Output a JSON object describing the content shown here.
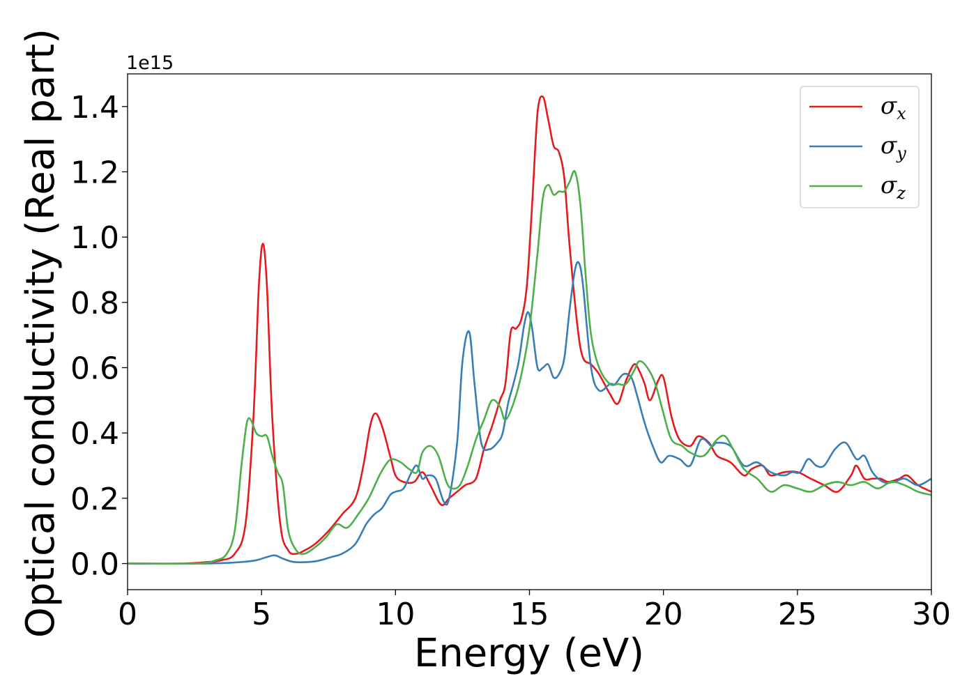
{
  "chart_data": {
    "type": "line",
    "title": "",
    "xlabel": "Energy (eV)",
    "ylabel": "Optical conductivity (Real part)",
    "y_offset_label": "1e15",
    "xlim": [
      0,
      30
    ],
    "ylim": [
      -0.08,
      1.5
    ],
    "xticks": [
      0,
      5,
      10,
      15,
      20,
      25,
      30
    ],
    "xtick_labels": [
      "0",
      "5",
      "10",
      "15",
      "20",
      "25",
      "30"
    ],
    "yticks": [
      0.0,
      0.2,
      0.4,
      0.6,
      0.8,
      1.0,
      1.2,
      1.4
    ],
    "ytick_labels": [
      "0.0",
      "0.2",
      "0.4",
      "0.6",
      "0.8",
      "1.0",
      "1.2",
      "1.4"
    ],
    "grid": false,
    "legend_position": "top-right",
    "series": [
      {
        "name": "σx",
        "legend_main": "σ",
        "legend_sub": "x",
        "color": "#e41a1c",
        "x": [
          0,
          2,
          3,
          3.5,
          4,
          4.4,
          4.7,
          4.9,
          5.05,
          5.2,
          5.4,
          5.7,
          6.0,
          6.3,
          6.6,
          7.0,
          7.5,
          8.0,
          8.5,
          8.8,
          9.05,
          9.25,
          9.5,
          9.8,
          10.0,
          10.3,
          10.7,
          11.0,
          11.3,
          11.7,
          12.0,
          12.3,
          12.6,
          13.0,
          13.3,
          13.6,
          13.9,
          14.1,
          14.3,
          14.5,
          14.7,
          14.9,
          15.1,
          15.3,
          15.5,
          15.7,
          15.9,
          16.1,
          16.3,
          16.5,
          16.8,
          17.0,
          17.3,
          17.6,
          18.0,
          18.3,
          18.6,
          18.9,
          19.1,
          19.3,
          19.5,
          19.8,
          20.0,
          20.3,
          20.6,
          21.0,
          21.3,
          21.7,
          22.0,
          22.5,
          23.0,
          23.3,
          23.7,
          24.0,
          24.5,
          25.0,
          25.5,
          26.0,
          26.5,
          27.0,
          27.2,
          27.5,
          27.8,
          28.1,
          28.4,
          28.8,
          29.1,
          29.5,
          30.0
        ],
        "y": [
          0.0,
          0.0,
          0.005,
          0.01,
          0.03,
          0.12,
          0.45,
          0.85,
          0.98,
          0.85,
          0.45,
          0.12,
          0.04,
          0.03,
          0.04,
          0.06,
          0.1,
          0.15,
          0.2,
          0.3,
          0.42,
          0.46,
          0.42,
          0.33,
          0.27,
          0.25,
          0.25,
          0.28,
          0.24,
          0.18,
          0.2,
          0.22,
          0.24,
          0.26,
          0.35,
          0.42,
          0.5,
          0.55,
          0.71,
          0.72,
          0.75,
          0.85,
          1.1,
          1.38,
          1.43,
          1.36,
          1.28,
          1.26,
          1.18,
          0.97,
          0.72,
          0.63,
          0.61,
          0.58,
          0.52,
          0.49,
          0.56,
          0.61,
          0.59,
          0.55,
          0.5,
          0.56,
          0.57,
          0.45,
          0.38,
          0.36,
          0.39,
          0.37,
          0.33,
          0.31,
          0.27,
          0.29,
          0.3,
          0.27,
          0.28,
          0.28,
          0.26,
          0.24,
          0.22,
          0.27,
          0.3,
          0.26,
          0.26,
          0.26,
          0.25,
          0.26,
          0.27,
          0.24,
          0.22
        ]
      },
      {
        "name": "σy",
        "legend_main": "σ",
        "legend_sub": "y",
        "color": "#377eb8",
        "x": [
          0,
          3,
          4.3,
          4.8,
          5.2,
          5.5,
          5.8,
          6.2,
          6.8,
          7.2,
          7.6,
          8.0,
          8.5,
          8.9,
          9.2,
          9.5,
          9.8,
          10.0,
          10.3,
          10.6,
          10.8,
          11.0,
          11.2,
          11.5,
          11.8,
          12.0,
          12.3,
          12.5,
          12.75,
          12.95,
          13.2,
          13.5,
          13.8,
          14.0,
          14.2,
          14.4,
          14.6,
          14.8,
          14.95,
          15.1,
          15.3,
          15.5,
          15.7,
          15.9,
          16.1,
          16.3,
          16.5,
          16.7,
          16.85,
          17.0,
          17.3,
          17.6,
          18.0,
          18.2,
          18.5,
          18.8,
          19.0,
          19.3,
          19.6,
          19.9,
          20.2,
          20.6,
          21.0,
          21.4,
          21.8,
          22.0,
          22.5,
          23.0,
          23.5,
          24.0,
          24.5,
          24.8,
          25.1,
          25.4,
          25.7,
          26.0,
          26.4,
          26.8,
          27.2,
          27.5,
          27.8,
          28.2,
          28.6,
          29.0,
          29.5,
          30.0
        ],
        "y": [
          0.0,
          0.0,
          0.005,
          0.01,
          0.02,
          0.025,
          0.015,
          0.005,
          0.005,
          0.01,
          0.02,
          0.03,
          0.06,
          0.12,
          0.15,
          0.17,
          0.21,
          0.22,
          0.23,
          0.28,
          0.3,
          0.26,
          0.27,
          0.26,
          0.19,
          0.2,
          0.37,
          0.62,
          0.71,
          0.55,
          0.37,
          0.35,
          0.37,
          0.4,
          0.49,
          0.55,
          0.62,
          0.73,
          0.77,
          0.72,
          0.6,
          0.6,
          0.61,
          0.57,
          0.58,
          0.63,
          0.78,
          0.9,
          0.92,
          0.85,
          0.6,
          0.53,
          0.55,
          0.55,
          0.58,
          0.57,
          0.52,
          0.43,
          0.36,
          0.31,
          0.33,
          0.32,
          0.3,
          0.38,
          0.36,
          0.37,
          0.36,
          0.3,
          0.31,
          0.28,
          0.27,
          0.28,
          0.28,
          0.32,
          0.3,
          0.3,
          0.35,
          0.37,
          0.32,
          0.33,
          0.28,
          0.25,
          0.25,
          0.26,
          0.24,
          0.26
        ]
      },
      {
        "name": "σz",
        "legend_main": "σ",
        "legend_sub": "z",
        "color": "#4daf4a",
        "x": [
          0,
          2.5,
          3.3,
          3.7,
          4.0,
          4.25,
          4.45,
          4.6,
          4.8,
          5.0,
          5.2,
          5.4,
          5.6,
          5.8,
          6.0,
          6.3,
          6.6,
          7.0,
          7.4,
          7.8,
          8.2,
          8.6,
          9.0,
          9.4,
          9.7,
          9.9,
          10.2,
          10.5,
          10.8,
          11.0,
          11.3,
          11.6,
          11.9,
          12.1,
          12.4,
          12.7,
          13.0,
          13.3,
          13.6,
          13.9,
          14.1,
          14.4,
          14.7,
          15.0,
          15.3,
          15.5,
          15.7,
          15.9,
          16.1,
          16.3,
          16.5,
          16.7,
          16.9,
          17.1,
          17.3,
          17.6,
          18.0,
          18.3,
          18.6,
          18.9,
          19.1,
          19.4,
          19.7,
          20.0,
          20.3,
          20.7,
          21.0,
          21.5,
          22.0,
          22.3,
          22.6,
          23.0,
          23.5,
          24.0,
          24.5,
          25.0,
          25.5,
          26.0,
          26.5,
          27.0,
          27.5,
          28.0,
          28.5,
          29.0,
          29.5,
          30.0
        ],
        "y": [
          0.0,
          0.0,
          0.01,
          0.03,
          0.1,
          0.3,
          0.43,
          0.44,
          0.4,
          0.39,
          0.39,
          0.33,
          0.28,
          0.24,
          0.1,
          0.04,
          0.03,
          0.05,
          0.08,
          0.12,
          0.11,
          0.15,
          0.2,
          0.27,
          0.31,
          0.32,
          0.31,
          0.29,
          0.28,
          0.34,
          0.36,
          0.33,
          0.25,
          0.23,
          0.24,
          0.3,
          0.38,
          0.44,
          0.5,
          0.48,
          0.44,
          0.49,
          0.58,
          0.72,
          0.95,
          1.12,
          1.16,
          1.13,
          1.14,
          1.14,
          1.17,
          1.2,
          1.1,
          0.88,
          0.7,
          0.6,
          0.55,
          0.55,
          0.55,
          0.59,
          0.62,
          0.6,
          0.55,
          0.46,
          0.38,
          0.36,
          0.34,
          0.33,
          0.38,
          0.39,
          0.35,
          0.29,
          0.26,
          0.22,
          0.24,
          0.23,
          0.22,
          0.24,
          0.25,
          0.24,
          0.25,
          0.23,
          0.25,
          0.24,
          0.22,
          0.21
        ]
      }
    ]
  }
}
